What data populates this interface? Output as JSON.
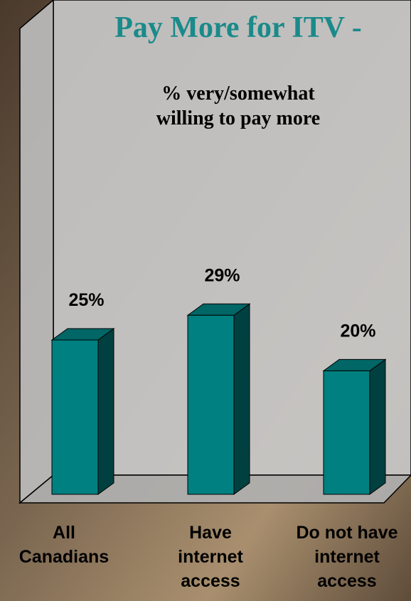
{
  "chart_data": {
    "type": "bar3d",
    "title": "Pay More for ITV -",
    "subtitle": [
      "% very/somewhat",
      "willing to pay more"
    ],
    "categories": [
      [
        "All",
        "Canadians"
      ],
      [
        "Have",
        "internet",
        "access"
      ],
      [
        "Do not have",
        "internet",
        "access"
      ]
    ],
    "values": [
      25,
      29,
      20
    ],
    "value_labels": [
      "25%",
      "29%",
      "20%"
    ],
    "color": "#008080"
  }
}
